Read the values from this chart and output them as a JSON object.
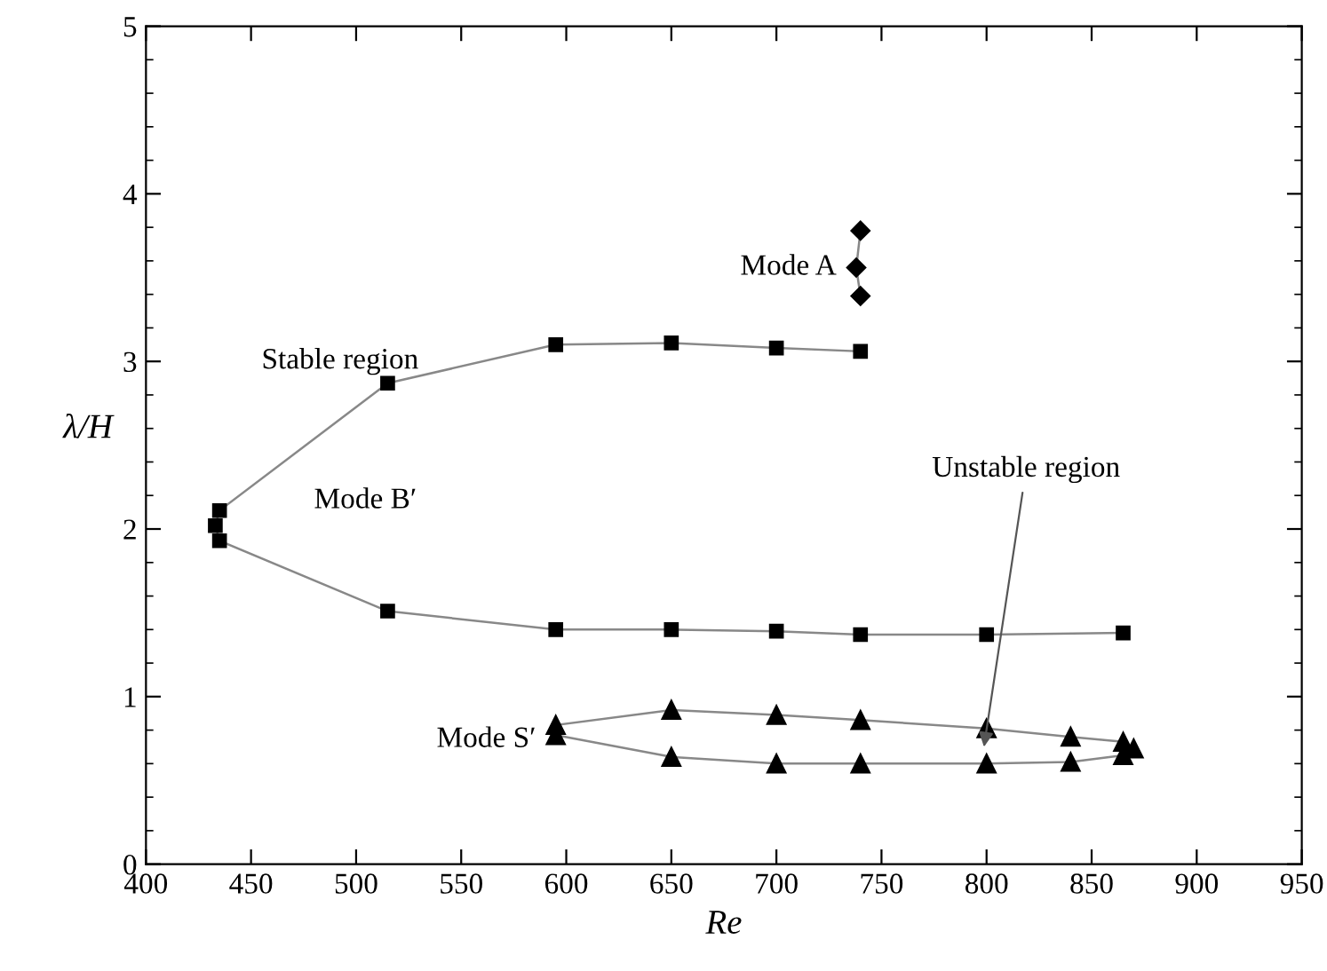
{
  "chart_data": {
    "type": "line",
    "xlabel": "Re",
    "ylabel": "λ/H",
    "xlim": [
      400,
      950
    ],
    "xticks": [
      400,
      450,
      500,
      550,
      600,
      650,
      700,
      750,
      800,
      850,
      900,
      950
    ],
    "ylim": [
      0,
      5
    ],
    "yticks": [
      0,
      1,
      2,
      3,
      4,
      5
    ],
    "grid": false,
    "legend": false,
    "series": [
      {
        "name": "Mode A",
        "color": "#000000",
        "marker": "diamond",
        "x": [
          740,
          738,
          740
        ],
        "values": [
          3.78,
          3.56,
          3.39
        ]
      },
      {
        "name": "Mode B′",
        "color": "#000000",
        "marker": "square",
        "x": [
          740,
          700,
          650,
          595,
          515,
          435,
          433,
          435,
          515,
          595,
          650,
          700,
          740,
          800,
          865
        ],
        "values": [
          3.06,
          3.08,
          3.11,
          3.1,
          2.87,
          2.11,
          2.02,
          1.93,
          1.51,
          1.4,
          1.4,
          1.39,
          1.37,
          1.37,
          1.38
        ]
      },
      {
        "name": "Mode S′",
        "color": "#000000",
        "marker": "triangle",
        "x": [
          595,
          650,
          700,
          740,
          800,
          840,
          865,
          870,
          865,
          840,
          800,
          740,
          700,
          650,
          595
        ],
        "values": [
          0.83,
          0.92,
          0.89,
          0.86,
          0.81,
          0.76,
          0.73,
          0.69,
          0.65,
          0.61,
          0.6,
          0.6,
          0.6,
          0.64,
          0.77
        ]
      }
    ],
    "annotations": [
      "Stable region",
      "Unstable region"
    ]
  }
}
